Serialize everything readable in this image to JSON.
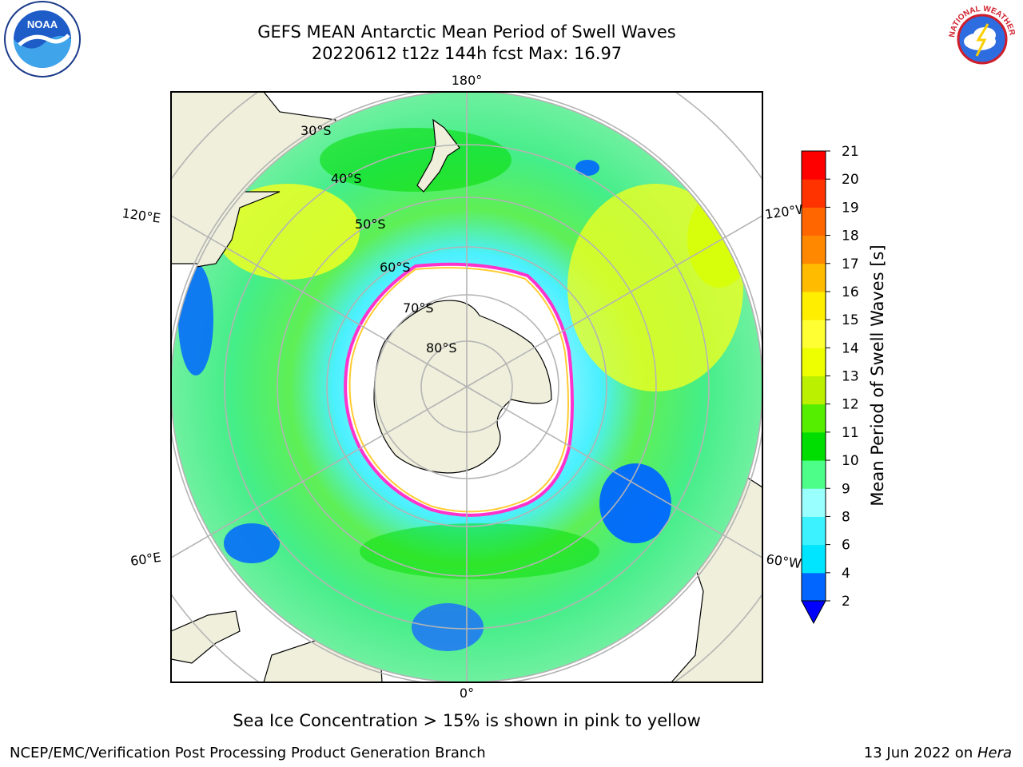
{
  "title": {
    "line1": "GEFS MEAN Antarctic Mean Period of Swell Waves",
    "line2": "20220612 t12z 144h fcst   Max: 16.97"
  },
  "logos": {
    "left": {
      "icon": "noaa-logo",
      "text": "NOAA"
    },
    "right": {
      "icon": "nws-logo",
      "text": "NATIONAL WEATHER SERVICE"
    }
  },
  "map": {
    "projection": "south-polar-stereographic",
    "longitude_labels": [
      "180°",
      "120°E",
      "120°W",
      "60°E",
      "60°W",
      "0°"
    ],
    "latitude_labels": [
      "30°S",
      "40°S",
      "50°S",
      "60°S",
      "70°S",
      "80°S"
    ],
    "land_color": "#efefdc",
    "ice_edge_colors": [
      "#ff33cc",
      "#ffcc33"
    ]
  },
  "colorbar": {
    "label": "Mean Period of Swell Waves [s]",
    "ticks": [
      "2",
      "4",
      "6",
      "8",
      "9",
      "10",
      "11",
      "12",
      "13",
      "14",
      "15",
      "16",
      "17",
      "18",
      "19",
      "20",
      "21"
    ],
    "colors": [
      "#0066ff",
      "#00e5ff",
      "#3df2ff",
      "#99ffff",
      "#4dff88",
      "#00dd00",
      "#55ee00",
      "#bbf000",
      "#eeff00",
      "#ffff33",
      "#ffee00",
      "#ffbb00",
      "#ff8800",
      "#ff6600",
      "#ff3300",
      "#ff0000"
    ],
    "extend_color": "#0000ff"
  },
  "footer": {
    "caption": "Sea Ice Concentration > 15% is shown in pink to yellow",
    "credit": "NCEP/EMC/Verification Post Processing Product Generation Branch",
    "date": "13 Jun 2022 on ",
    "machine": "Hera"
  }
}
